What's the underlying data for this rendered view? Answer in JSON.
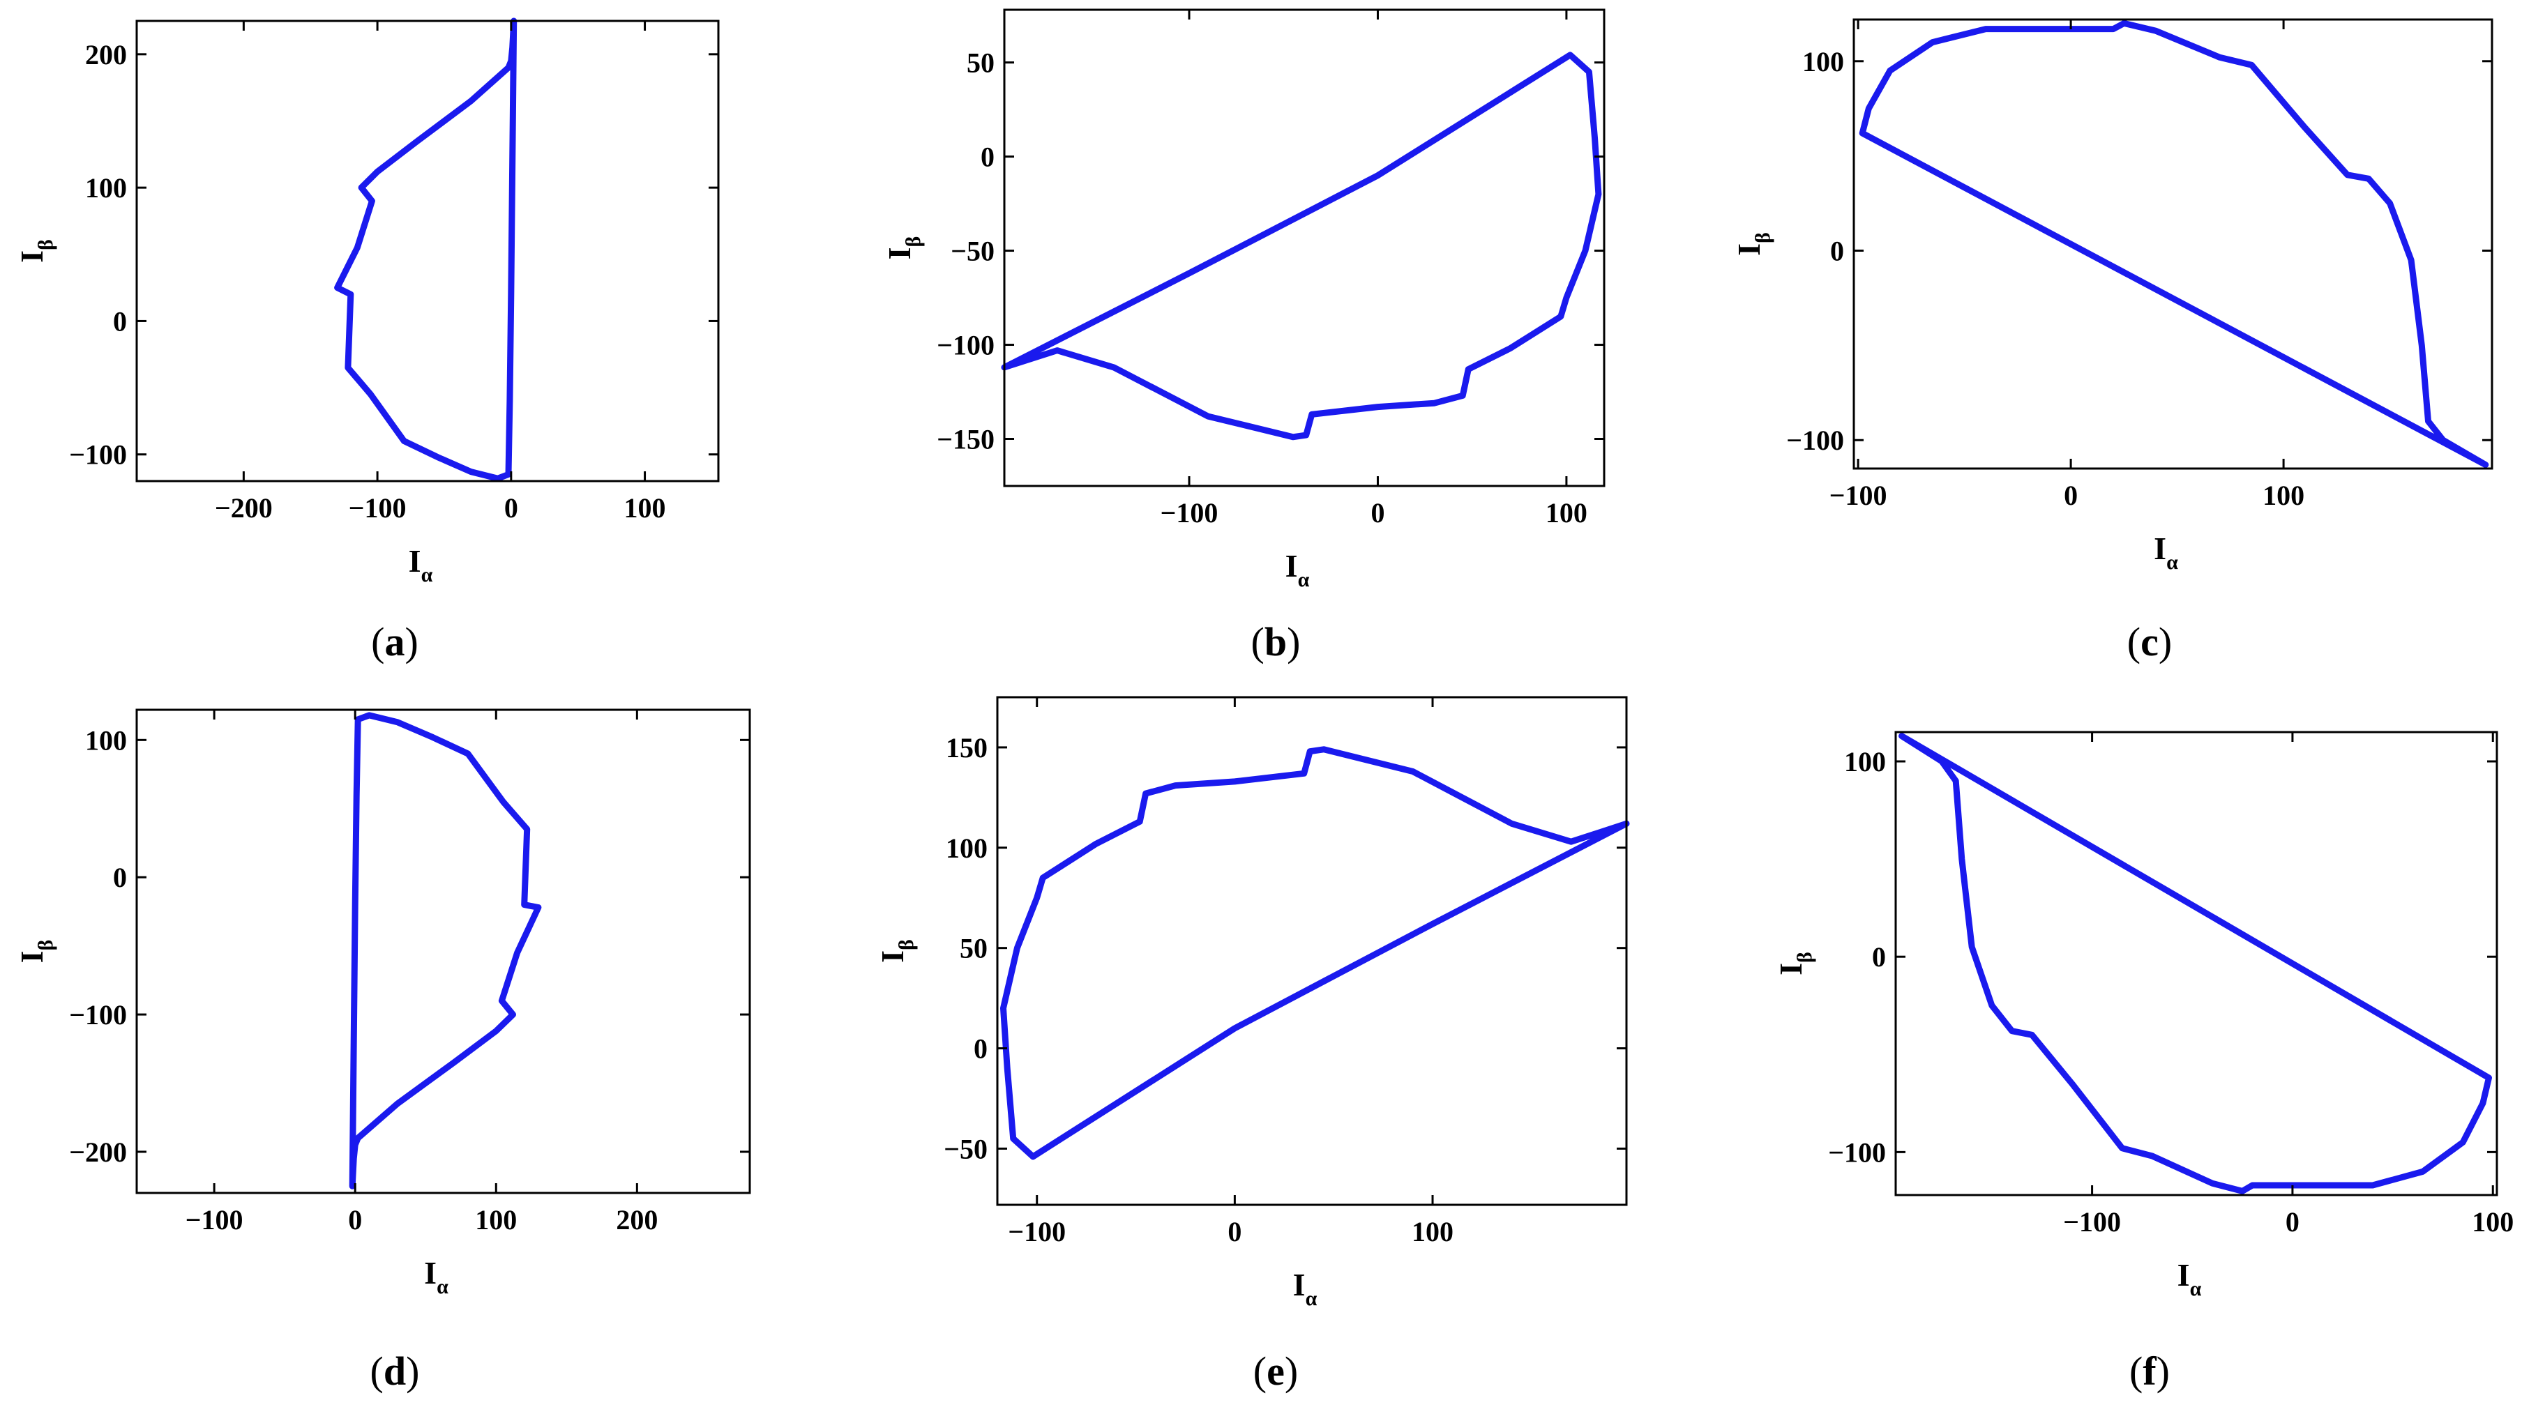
{
  "figure": {
    "line_color": "#1a1aee",
    "background": "#ffffff"
  },
  "chart_data": [
    {
      "type": "line",
      "panel_label": "a",
      "xlabel": {
        "main": "I",
        "sub": "α"
      },
      "ylabel": {
        "main": "I",
        "sub": "β"
      },
      "xlim": [
        -280,
        155
      ],
      "ylim": [
        -120,
        225
      ],
      "xticks": [
        -200,
        -100,
        0,
        100
      ],
      "xtick_labels": [
        "−200",
        "−100",
        "0",
        "100"
      ],
      "yticks": [
        -100,
        0,
        100,
        200
      ],
      "ytick_labels": [
        "−100",
        "0",
        "100",
        "200"
      ],
      "grid": false,
      "series": [
        {
          "x": [
            2,
            1,
            0,
            -2,
            -30,
            -70,
            -100,
            -112,
            -104,
            -115,
            -130,
            -120,
            -122,
            -105,
            -80,
            -55,
            -30,
            -10,
            -2,
            -1,
            0,
            1,
            2
          ],
          "y": [
            225,
            205,
            195,
            190,
            165,
            135,
            112,
            100,
            90,
            55,
            25,
            20,
            -35,
            -55,
            -90,
            -102,
            -113,
            -118,
            -115,
            -60,
            20,
            120,
            225
          ]
        }
      ]
    },
    {
      "type": "line",
      "panel_label": "b",
      "xlabel": {
        "main": "I",
        "sub": "α"
      },
      "ylabel": {
        "main": "I",
        "sub": "β"
      },
      "xlim": [
        -198,
        120
      ],
      "ylim": [
        -175,
        78
      ],
      "xticks": [
        -100,
        0,
        100
      ],
      "xtick_labels": [
        "−100",
        "0",
        "100"
      ],
      "yticks": [
        -150,
        -100,
        -50,
        0,
        50
      ],
      "ytick_labels": [
        "−150",
        "−100",
        "−50",
        "0",
        "50"
      ],
      "grid": false,
      "series": [
        {
          "x": [
            -198,
            -100,
            0,
            102,
            112,
            115,
            117,
            110,
            100,
            97,
            70,
            48,
            45,
            30,
            0,
            -35,
            -38,
            -45,
            -90,
            -140,
            -170,
            -198
          ],
          "y": [
            -112,
            -62,
            -10,
            54,
            45,
            10,
            -20,
            -50,
            -75,
            -85,
            -102,
            -113,
            -127,
            -131,
            -133,
            -137,
            -148,
            -149,
            -138,
            -112,
            -103,
            -112
          ]
        }
      ]
    },
    {
      "type": "line",
      "panel_label": "c",
      "xlabel": {
        "main": "I",
        "sub": "α"
      },
      "ylabel": {
        "main": "I",
        "sub": "β"
      },
      "xlim": [
        -102,
        198
      ],
      "ylim": [
        -115,
        122
      ],
      "xticks": [
        -100,
        0,
        100
      ],
      "xtick_labels": [
        "−100",
        "0",
        "100"
      ],
      "yticks": [
        -100,
        0,
        100
      ],
      "ytick_labels": [
        "−100",
        "0",
        "100"
      ],
      "grid": false,
      "series": [
        {
          "x": [
            -98,
            -95,
            -85,
            -65,
            -40,
            -20,
            0,
            20,
            25,
            40,
            70,
            85,
            110,
            130,
            140,
            150,
            160,
            165,
            168,
            175,
            195,
            -98
          ],
          "y": [
            62,
            75,
            95,
            110,
            117,
            117,
            117,
            117,
            120,
            116,
            102,
            98,
            65,
            40,
            38,
            25,
            -5,
            -50,
            -90,
            -100,
            -113,
            62
          ]
        }
      ]
    },
    {
      "type": "line",
      "panel_label": "d",
      "xlabel": {
        "main": "I",
        "sub": "α"
      },
      "ylabel": {
        "main": "I",
        "sub": "β"
      },
      "xlim": [
        -155,
        280
      ],
      "ylim": [
        -230,
        122
      ],
      "xticks": [
        -100,
        0,
        100,
        200
      ],
      "xtick_labels": [
        "−100",
        "0",
        "100",
        "200"
      ],
      "yticks": [
        -200,
        -100,
        0,
        100
      ],
      "ytick_labels": [
        "−200",
        "−100",
        "0",
        "100"
      ],
      "grid": false,
      "series": [
        {
          "x": [
            -2,
            -1,
            0,
            2,
            30,
            70,
            100,
            112,
            104,
            115,
            130,
            120,
            122,
            105,
            80,
            55,
            30,
            10,
            2,
            1,
            0,
            -1,
            -2
          ],
          "y": [
            -225,
            -205,
            -195,
            -190,
            -165,
            -135,
            -112,
            -100,
            -90,
            -55,
            -22,
            -20,
            35,
            55,
            90,
            102,
            113,
            118,
            115,
            60,
            -20,
            -120,
            -225
          ]
        }
      ]
    },
    {
      "type": "line",
      "panel_label": "e",
      "xlabel": {
        "main": "I",
        "sub": "α"
      },
      "ylabel": {
        "main": "I",
        "sub": "β"
      },
      "xlim": [
        -120,
        198
      ],
      "ylim": [
        -78,
        175
      ],
      "xticks": [
        -100,
        0,
        100
      ],
      "xtick_labels": [
        "−100",
        "0",
        "100"
      ],
      "yticks": [
        -50,
        0,
        50,
        100,
        150
      ],
      "ytick_labels": [
        "−50",
        "0",
        "50",
        "100",
        "150"
      ],
      "grid": false,
      "series": [
        {
          "x": [
            198,
            100,
            0,
            -102,
            -112,
            -115,
            -117,
            -110,
            -100,
            -97,
            -70,
            -48,
            -45,
            -30,
            0,
            35,
            38,
            45,
            90,
            140,
            170,
            198
          ],
          "y": [
            112,
            62,
            10,
            -54,
            -45,
            -10,
            20,
            50,
            75,
            85,
            102,
            113,
            127,
            131,
            133,
            137,
            148,
            149,
            138,
            112,
            103,
            112
          ]
        }
      ]
    },
    {
      "type": "line",
      "panel_label": "f",
      "xlabel": {
        "main": "I",
        "sub": "α"
      },
      "ylabel": {
        "main": "I",
        "sub": "β"
      },
      "xlim": [
        -198,
        102
      ],
      "ylim": [
        -122,
        115
      ],
      "xticks": [
        -100,
        0,
        100
      ],
      "xtick_labels": [
        "−100",
        "0",
        "100"
      ],
      "yticks": [
        -100,
        0,
        100
      ],
      "ytick_labels": [
        "−100",
        "0",
        "100"
      ],
      "grid": false,
      "series": [
        {
          "x": [
            98,
            95,
            85,
            65,
            40,
            20,
            0,
            -20,
            -25,
            -40,
            -70,
            -85,
            -110,
            -130,
            -140,
            -150,
            -160,
            -165,
            -168,
            -175,
            -195,
            98
          ],
          "y": [
            -62,
            -75,
            -95,
            -110,
            -117,
            -117,
            -117,
            -117,
            -120,
            -116,
            -102,
            -98,
            -65,
            -40,
            -38,
            -25,
            5,
            50,
            90,
            100,
            113,
            -62
          ]
        }
      ]
    }
  ]
}
